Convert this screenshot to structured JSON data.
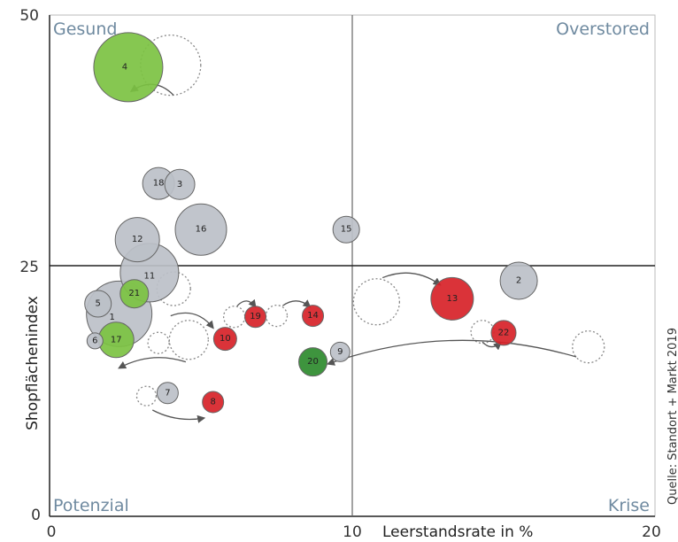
{
  "chart_data": {
    "type": "scatter",
    "xlabel": "Leerstandsrate in %",
    "ylabel": "Shopflächenindex",
    "xlim": [
      0,
      20
    ],
    "ylim": [
      0,
      50
    ],
    "x_ticks": [
      "0",
      "10",
      "20"
    ],
    "y_ticks": [
      "0",
      "25",
      "50"
    ],
    "divider_x": 10,
    "divider_y": 25,
    "quadrants": {
      "top_left": "Gesund",
      "top_right": "Overstored",
      "bottom_left": "Potenzial",
      "bottom_right": "Krise"
    },
    "source": "Quelle: Standort + Markt 2019",
    "colors": {
      "grey": "#bcc0c8",
      "light_green": "#7cc242",
      "dark_green": "#2e8b2e",
      "red": "#d72228",
      "outline": "#666666",
      "previous": "#888888"
    },
    "bubbles": [
      {
        "label": "4",
        "x": 2.6,
        "y": 44.8,
        "r": 39,
        "color": "light_green"
      },
      {
        "label": "18",
        "x": 3.6,
        "y": 33.2,
        "r": 18,
        "color": "grey"
      },
      {
        "label": "3",
        "x": 4.3,
        "y": 33.1,
        "r": 17,
        "color": "grey"
      },
      {
        "label": "16",
        "x": 5.0,
        "y": 28.6,
        "r": 29,
        "color": "grey"
      },
      {
        "label": "12",
        "x": 2.9,
        "y": 27.6,
        "r": 25,
        "color": "grey"
      },
      {
        "label": "11",
        "x": 3.3,
        "y": 24.3,
        "r": 33,
        "color": "grey"
      },
      {
        "label": "15",
        "x": 9.8,
        "y": 28.6,
        "r": 15,
        "color": "grey"
      },
      {
        "label": "1",
        "x": 2.3,
        "y": 20.2,
        "r": 37,
        "color": "grey"
      },
      {
        "label": "5",
        "x": 1.6,
        "y": 21.2,
        "r": 15,
        "color": "grey"
      },
      {
        "label": "21",
        "x": 2.8,
        "y": 22.2,
        "r": 16,
        "color": "light_green"
      },
      {
        "label": "6",
        "x": 1.5,
        "y": 17.5,
        "r": 9,
        "color": "grey"
      },
      {
        "label": "17",
        "x": 2.2,
        "y": 17.6,
        "r": 20,
        "color": "light_green"
      },
      {
        "label": "7",
        "x": 3.9,
        "y": 12.3,
        "r": 12,
        "color": "grey"
      },
      {
        "label": "8",
        "x": 5.4,
        "y": 11.4,
        "r": 12,
        "color": "red"
      },
      {
        "label": "10",
        "x": 5.8,
        "y": 17.7,
        "r": 13,
        "color": "red"
      },
      {
        "label": "19",
        "x": 6.8,
        "y": 19.9,
        "r": 12,
        "color": "red"
      },
      {
        "label": "14",
        "x": 8.7,
        "y": 20.0,
        "r": 12,
        "color": "red"
      },
      {
        "label": "9",
        "x": 9.6,
        "y": 16.4,
        "r": 11,
        "color": "grey"
      },
      {
        "label": "20",
        "x": 8.7,
        "y": 15.4,
        "r": 16,
        "color": "dark_green"
      },
      {
        "label": "13",
        "x": 13.3,
        "y": 21.7,
        "r": 24,
        "color": "red"
      },
      {
        "label": "2",
        "x": 15.5,
        "y": 23.5,
        "r": 21,
        "color": "grey"
      },
      {
        "label": "22",
        "x": 15.0,
        "y": 18.3,
        "r": 14,
        "color": "red"
      }
    ],
    "previous_positions": [
      {
        "x": 4.0,
        "y": 45.0,
        "r": 34
      },
      {
        "x": 4.1,
        "y": 22.7,
        "r": 19
      },
      {
        "x": 3.6,
        "y": 17.3,
        "r": 12
      },
      {
        "x": 4.6,
        "y": 17.6,
        "r": 22
      },
      {
        "x": 3.2,
        "y": 12.0,
        "r": 11
      },
      {
        "x": 6.1,
        "y": 19.9,
        "r": 12
      },
      {
        "x": 7.5,
        "y": 20.0,
        "r": 12
      },
      {
        "x": 10.8,
        "y": 21.4,
        "r": 26
      },
      {
        "x": 14.3,
        "y": 18.4,
        "r": 13
      },
      {
        "x": 17.8,
        "y": 16.9,
        "r": 18
      }
    ],
    "arrows": [
      {
        "from": [
          4.1,
          42.0
        ],
        "to": [
          2.7,
          42.4
        ],
        "bend": 20
      },
      {
        "from": [
          4.0,
          20.0
        ],
        "to": [
          5.4,
          18.8
        ],
        "bend": -18
      },
      {
        "from": [
          4.5,
          15.4
        ],
        "to": [
          2.3,
          14.8
        ],
        "bend": 16
      },
      {
        "from": [
          3.4,
          10.6
        ],
        "to": [
          5.1,
          9.8
        ],
        "bend": 10
      },
      {
        "from": [
          6.2,
          21.0
        ],
        "to": [
          6.8,
          20.9
        ],
        "bend": -12
      },
      {
        "from": [
          7.7,
          21.0
        ],
        "to": [
          8.6,
          20.9
        ],
        "bend": -12
      },
      {
        "from": [
          11.0,
          23.8
        ],
        "to": [
          12.9,
          23.1
        ],
        "bend": -18
      },
      {
        "from": [
          14.3,
          17.4
        ],
        "to": [
          14.9,
          17.3
        ],
        "bend": 10
      },
      {
        "from": [
          17.4,
          15.9
        ],
        "to": [
          9.2,
          15.2
        ],
        "bend": 45
      }
    ]
  }
}
